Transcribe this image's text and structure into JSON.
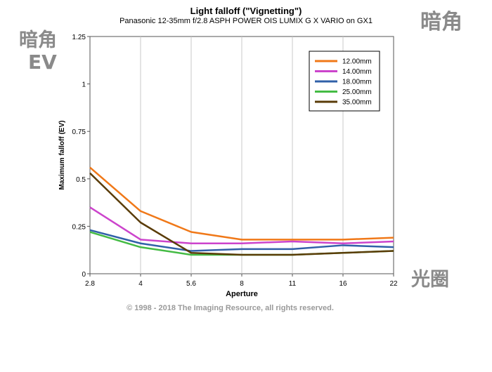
{
  "watermarks": {
    "top_left_line1": "暗角",
    "top_left_line2": "EV",
    "top_right": "暗角",
    "bottom_right": "光圈"
  },
  "copyright": "© 1998 - 2018 The Imaging Resource, all rights reserved.",
  "chart_data": {
    "type": "line",
    "title": "Light falloff (\"Vignetting\")",
    "subtitle": "Panasonic 12-35mm f/2.8 ASPH POWER OIS LUMIX G X VARIO on GX1",
    "xlabel": "Aperture",
    "ylabel": "Maximum falloff (EV)",
    "categories": [
      "2.8",
      "4",
      "5.6",
      "8",
      "11",
      "16",
      "22"
    ],
    "yticks": [
      "0",
      "0.25",
      "0.5",
      "0.75",
      "1",
      "1.25"
    ],
    "ylim": [
      0,
      1.25
    ],
    "grid": "vertical",
    "legend_position": "top-right",
    "series": [
      {
        "name": "12.00mm",
        "color": "#f07818",
        "values": [
          0.56,
          0.33,
          0.22,
          0.18,
          0.18,
          0.18,
          0.19
        ]
      },
      {
        "name": "14.00mm",
        "color": "#cc44cc",
        "values": [
          0.35,
          0.18,
          0.16,
          0.16,
          0.17,
          0.16,
          0.17
        ]
      },
      {
        "name": "18.00mm",
        "color": "#3060a8",
        "values": [
          0.23,
          0.16,
          0.12,
          0.13,
          0.13,
          0.15,
          0.14
        ]
      },
      {
        "name": "25.00mm",
        "color": "#44bb44",
        "values": [
          0.22,
          0.14,
          0.1,
          0.1,
          0.1,
          0.11,
          0.12
        ]
      },
      {
        "name": "35.00mm",
        "color": "#5a3c08",
        "values": [
          0.53,
          0.27,
          0.11,
          0.1,
          0.1,
          0.11,
          0.12
        ]
      }
    ]
  }
}
